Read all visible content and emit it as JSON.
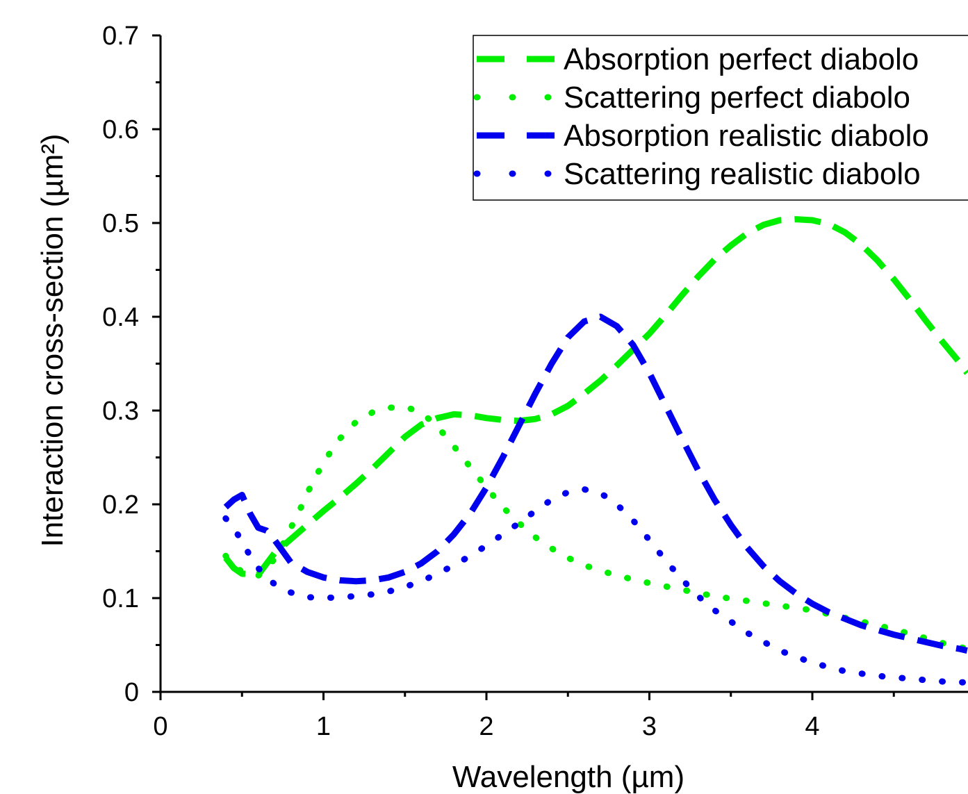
{
  "chart_data": {
    "type": "line",
    "title": "",
    "xlabel": "Wavelength (µm)",
    "ylabel": "Interaction cross-section (µm²)",
    "xlim": [
      0,
      4.95
    ],
    "ylim": [
      0,
      0.7
    ],
    "xticks": [
      0,
      1,
      2,
      3,
      4
    ],
    "yticks": [
      0,
      0.1,
      0.2,
      0.3,
      0.4,
      0.5,
      0.6,
      0.7
    ],
    "grid": false,
    "legend_position": "top-right",
    "series": [
      {
        "name": "Absorption perfect diabolo",
        "color": "#00ee00",
        "style": "dash",
        "x": [
          0.4,
          0.45,
          0.5,
          0.6,
          0.7,
          0.8,
          0.9,
          1.0,
          1.1,
          1.2,
          1.3,
          1.4,
          1.5,
          1.6,
          1.7,
          1.8,
          1.9,
          2.0,
          2.1,
          2.2,
          2.3,
          2.4,
          2.5,
          2.6,
          2.7,
          2.8,
          2.9,
          3.0,
          3.1,
          3.2,
          3.3,
          3.4,
          3.5,
          3.6,
          3.7,
          3.8,
          3.9,
          4.0,
          4.1,
          4.2,
          4.3,
          4.4,
          4.5,
          4.6,
          4.7,
          4.8,
          4.9,
          4.95
        ],
        "y": [
          0.143,
          0.132,
          0.126,
          0.125,
          0.148,
          0.163,
          0.178,
          0.193,
          0.207,
          0.222,
          0.238,
          0.255,
          0.272,
          0.285,
          0.292,
          0.296,
          0.295,
          0.292,
          0.29,
          0.289,
          0.291,
          0.296,
          0.305,
          0.318,
          0.332,
          0.348,
          0.365,
          0.382,
          0.402,
          0.423,
          0.443,
          0.461,
          0.476,
          0.489,
          0.498,
          0.503,
          0.504,
          0.503,
          0.499,
          0.49,
          0.477,
          0.46,
          0.44,
          0.418,
          0.395,
          0.373,
          0.352,
          0.34
        ]
      },
      {
        "name": "Scattering perfect diabolo",
        "color": "#00ee00",
        "style": "dot",
        "x": [
          0.4,
          0.45,
          0.5,
          0.55,
          0.6,
          0.65,
          0.7,
          0.75,
          0.8,
          0.85,
          0.9,
          1.0,
          1.1,
          1.2,
          1.3,
          1.4,
          1.5,
          1.6,
          1.7,
          1.8,
          1.9,
          2.0,
          2.1,
          2.2,
          2.3,
          2.4,
          2.5,
          2.6,
          2.8,
          3.0,
          3.2,
          3.4,
          3.6,
          3.8,
          4.0,
          4.2,
          4.4,
          4.6,
          4.8,
          4.95
        ],
        "y": [
          0.145,
          0.135,
          0.128,
          0.124,
          0.124,
          0.131,
          0.142,
          0.157,
          0.175,
          0.192,
          0.212,
          0.245,
          0.27,
          0.288,
          0.298,
          0.303,
          0.304,
          0.298,
          0.283,
          0.262,
          0.24,
          0.218,
          0.197,
          0.18,
          0.165,
          0.153,
          0.143,
          0.135,
          0.124,
          0.116,
          0.109,
          0.102,
          0.097,
          0.092,
          0.087,
          0.079,
          0.071,
          0.062,
          0.052,
          0.046
        ]
      },
      {
        "name": "Absorption realistic diabolo",
        "color": "#0000ee",
        "style": "dash",
        "x": [
          0.4,
          0.45,
          0.5,
          0.55,
          0.6,
          0.65,
          0.7,
          0.75,
          0.8,
          0.9,
          1.0,
          1.1,
          1.2,
          1.3,
          1.4,
          1.5,
          1.6,
          1.7,
          1.8,
          1.9,
          2.0,
          2.1,
          2.2,
          2.3,
          2.4,
          2.5,
          2.6,
          2.7,
          2.8,
          2.9,
          3.0,
          3.1,
          3.2,
          3.3,
          3.4,
          3.5,
          3.6,
          3.7,
          3.8,
          3.9,
          4.0,
          4.1,
          4.2,
          4.3,
          4.4,
          4.5,
          4.6,
          4.7,
          4.8,
          4.9,
          4.95
        ],
        "y": [
          0.197,
          0.205,
          0.21,
          0.19,
          0.175,
          0.172,
          0.162,
          0.15,
          0.138,
          0.128,
          0.122,
          0.119,
          0.118,
          0.119,
          0.122,
          0.128,
          0.137,
          0.15,
          0.168,
          0.19,
          0.218,
          0.25,
          0.284,
          0.318,
          0.35,
          0.378,
          0.395,
          0.4,
          0.39,
          0.37,
          0.34,
          0.305,
          0.27,
          0.236,
          0.205,
          0.178,
          0.154,
          0.134,
          0.118,
          0.105,
          0.094,
          0.085,
          0.078,
          0.071,
          0.066,
          0.061,
          0.057,
          0.053,
          0.049,
          0.046,
          0.044
        ]
      },
      {
        "name": "Scattering realistic diabolo",
        "color": "#0000ee",
        "style": "dot",
        "x": [
          0.4,
          0.45,
          0.5,
          0.55,
          0.6,
          0.65,
          0.7,
          0.8,
          0.9,
          1.0,
          1.1,
          1.2,
          1.3,
          1.4,
          1.5,
          1.6,
          1.7,
          1.8,
          1.9,
          2.0,
          2.1,
          2.2,
          2.3,
          2.4,
          2.5,
          2.6,
          2.7,
          2.8,
          2.9,
          3.0,
          3.1,
          3.2,
          3.3,
          3.4,
          3.6,
          3.8,
          4.0,
          4.2,
          4.4,
          4.6,
          4.8,
          4.95
        ],
        "y": [
          0.185,
          0.175,
          0.16,
          0.145,
          0.132,
          0.122,
          0.115,
          0.106,
          0.101,
          0.1,
          0.101,
          0.102,
          0.104,
          0.107,
          0.112,
          0.118,
          0.126,
          0.135,
          0.145,
          0.156,
          0.168,
          0.18,
          0.193,
          0.205,
          0.213,
          0.216,
          0.212,
          0.2,
          0.183,
          0.162,
          0.14,
          0.12,
          0.102,
          0.087,
          0.063,
          0.044,
          0.031,
          0.022,
          0.017,
          0.014,
          0.011,
          0.01
        ]
      }
    ]
  }
}
